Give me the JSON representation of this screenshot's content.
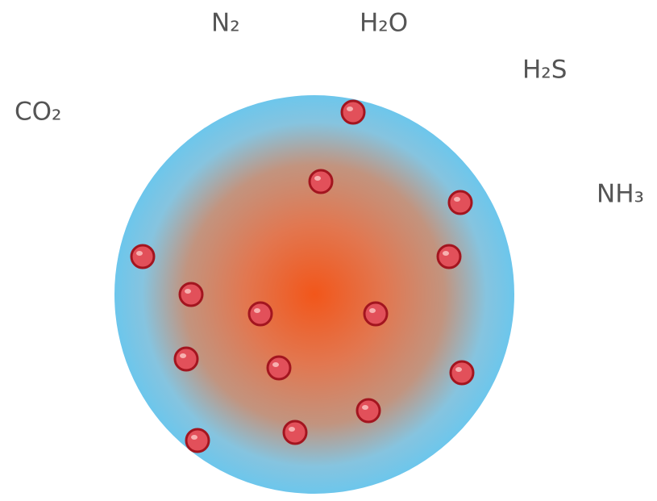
{
  "labels": [
    "CO₂",
    "N₂",
    "H₂O",
    "H₂S",
    "NH₃"
  ]
}
